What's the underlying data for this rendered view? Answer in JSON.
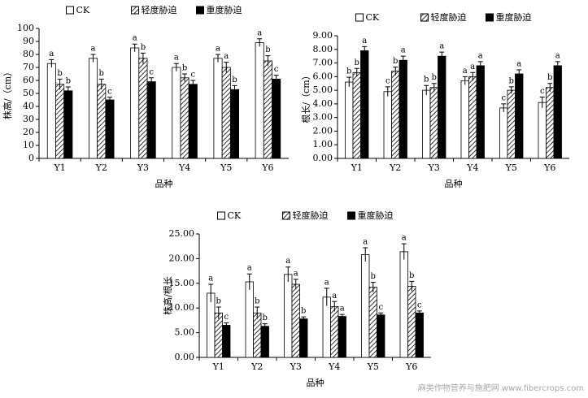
{
  "chart_data": [
    {
      "type": "bar",
      "y_label": "株高/（cm）",
      "x_label": "品种",
      "categories": [
        "Y1",
        "Y2",
        "Y3",
        "Y4",
        "Y5",
        "Y6"
      ],
      "ylim": [
        0,
        100
      ],
      "yticks": [
        0,
        10,
        20,
        30,
        40,
        50,
        60,
        70,
        80,
        90,
        100
      ],
      "series": [
        {
          "name": "CK",
          "color": "#ffffff",
          "pattern": "solid",
          "values": [
            73,
            77,
            85,
            70,
            77,
            89
          ],
          "errors": [
            3,
            3,
            3,
            3,
            3,
            3
          ],
          "letters": [
            "a",
            "a",
            "a",
            "a",
            "a",
            "a"
          ]
        },
        {
          "name": "轻度胁迫",
          "color": "#000000",
          "pattern": "hatch",
          "values": [
            57,
            57,
            77,
            62,
            70,
            75
          ],
          "errors": [
            4,
            4,
            4,
            3,
            4,
            4
          ],
          "letters": [
            "b",
            "b",
            "b",
            "b",
            "a",
            "b"
          ]
        },
        {
          "name": "重度胁迫",
          "color": "#000000",
          "pattern": "solid",
          "values": [
            52,
            45,
            59,
            57,
            53,
            61
          ],
          "errors": [
            3,
            2,
            3,
            3,
            3,
            3
          ],
          "letters": [
            "b",
            "c",
            "c",
            "c",
            "b",
            "c"
          ]
        }
      ]
    },
    {
      "type": "bar",
      "y_label": "根长/（cm）",
      "x_label": "品种",
      "categories": [
        "Y1",
        "Y2",
        "Y3",
        "Y4",
        "Y5",
        "Y6"
      ],
      "ylim": [
        0,
        9
      ],
      "yticks": [
        {
          "value": 0,
          "label": "0.00"
        },
        {
          "value": 1,
          "label": "1.00"
        },
        {
          "value": 2,
          "label": "2.00"
        },
        {
          "value": 3,
          "label": "3.00"
        },
        {
          "value": 4,
          "label": "4.00"
        },
        {
          "value": 5,
          "label": "5.00"
        },
        {
          "value": 6,
          "label": "6.00"
        },
        {
          "value": 7,
          "label": "7.00"
        },
        {
          "value": 8,
          "label": "8.00"
        },
        {
          "value": 9,
          "label": "9.00"
        }
      ],
      "series": [
        {
          "name": "CK",
          "color": "#ffffff",
          "pattern": "solid",
          "values": [
            5.6,
            4.9,
            5.0,
            5.7,
            3.7,
            4.1
          ],
          "errors": [
            0.35,
            0.35,
            0.35,
            0.3,
            0.3,
            0.4
          ],
          "letters": [
            "b",
            "c",
            "b",
            "a",
            "c",
            "c"
          ]
        },
        {
          "name": "轻度胁迫",
          "color": "#000000",
          "pattern": "hatch",
          "values": [
            6.3,
            6.4,
            5.2,
            6.0,
            5.0,
            5.2
          ],
          "errors": [
            0.3,
            0.3,
            0.3,
            0.3,
            0.25,
            0.3
          ],
          "letters": [
            "b",
            "b",
            "b",
            "a",
            "b",
            "b"
          ]
        },
        {
          "name": "重度胁迫",
          "color": "#000000",
          "pattern": "solid",
          "values": [
            7.9,
            7.2,
            7.5,
            6.8,
            6.2,
            6.8
          ],
          "errors": [
            0.3,
            0.3,
            0.3,
            0.3,
            0.3,
            0.3
          ],
          "letters": [
            "a",
            "a",
            "a",
            "a",
            "a",
            "a"
          ]
        }
      ]
    },
    {
      "type": "bar",
      "y_label": "株高/根长",
      "x_label": "品种",
      "categories": [
        "Y1",
        "Y2",
        "Y3",
        "Y4",
        "Y5",
        "Y6"
      ],
      "ylim": [
        0,
        25
      ],
      "yticks": [
        {
          "value": 0,
          "label": "0.00"
        },
        {
          "value": 5,
          "label": "5.00"
        },
        {
          "value": 10,
          "label": "10.00"
        },
        {
          "value": 15,
          "label": "15.00"
        },
        {
          "value": 20,
          "label": "20.00"
        },
        {
          "value": 25,
          "label": "25.00"
        }
      ],
      "series": [
        {
          "name": "CK",
          "color": "#ffffff",
          "pattern": "solid",
          "values": [
            13.0,
            15.3,
            16.8,
            12.2,
            20.8,
            21.4
          ],
          "errors": [
            1.8,
            1.6,
            1.5,
            1.8,
            1.4,
            1.6
          ],
          "letters": [
            "a",
            "a",
            "a",
            "a",
            "a",
            "a"
          ]
        },
        {
          "name": "轻度胁迫",
          "color": "#000000",
          "pattern": "hatch",
          "values": [
            9.0,
            9.0,
            14.8,
            10.3,
            14.2,
            14.4
          ],
          "errors": [
            1.2,
            1.2,
            1.0,
            1.0,
            1.0,
            1.0
          ],
          "letters": [
            "b",
            "b",
            "a",
            "a",
            "b",
            "b"
          ]
        },
        {
          "name": "重度胁迫",
          "color": "#000000",
          "pattern": "solid",
          "values": [
            6.5,
            6.3,
            7.8,
            8.3,
            8.6,
            9.0
          ],
          "errors": [
            0.5,
            0.5,
            0.4,
            0.4,
            0.4,
            0.4
          ],
          "letters": [
            "c",
            "b",
            "b",
            "a",
            "c",
            "c"
          ]
        }
      ]
    }
  ],
  "watermark": "麻类作物营养与施肥网 www.fibercrops.com"
}
